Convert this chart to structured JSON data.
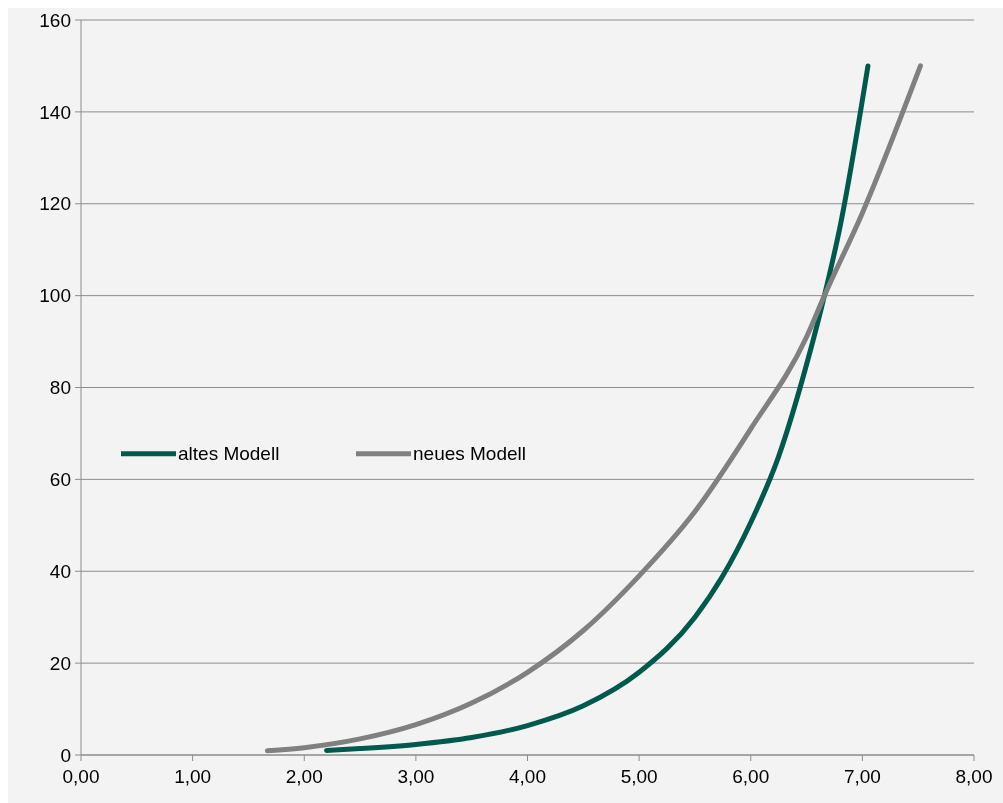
{
  "chart_data": {
    "type": "line",
    "xlim": [
      0,
      8
    ],
    "ylim": [
      0,
      160
    ],
    "xticks": [
      {
        "value": 0,
        "label": "0,00"
      },
      {
        "value": 1,
        "label": "1,00"
      },
      {
        "value": 2,
        "label": "2,00"
      },
      {
        "value": 3,
        "label": "3,00"
      },
      {
        "value": 4,
        "label": "4,00"
      },
      {
        "value": 5,
        "label": "5,00"
      },
      {
        "value": 6,
        "label": "6,00"
      },
      {
        "value": 7,
        "label": "7,00"
      },
      {
        "value": 8,
        "label": "8,00"
      }
    ],
    "yticks": [
      0,
      20,
      40,
      60,
      80,
      100,
      120,
      140,
      160
    ],
    "grid": "y",
    "legend": "left",
    "marker": "none",
    "line_style": "solid",
    "series": [
      {
        "name": "altes Modell",
        "color": "#005a4b",
        "x": [
          2.2,
          2.5,
          3,
          3.5,
          4,
          4.5,
          5,
          5.5,
          5.75,
          6,
          6.25,
          6.5,
          6.66,
          6.8,
          7.05
        ],
        "values": [
          1,
          1.4,
          2.3,
          3.8,
          6.4,
          10.7,
          18,
          30,
          39,
          50.6,
          65,
          85,
          100,
          115,
          150
        ]
      },
      {
        "name": "neues Modell",
        "color": "#808080",
        "x": [
          1.67,
          2,
          2.5,
          3,
          3.5,
          4,
          4.5,
          5,
          5.5,
          6,
          6.5,
          6.66,
          7,
          7.52
        ],
        "values": [
          0.9,
          1.6,
          3.5,
          6.6,
          11.3,
          18,
          27.1,
          39,
          53,
          71,
          91,
          100,
          118,
          150
        ]
      }
    ]
  }
}
